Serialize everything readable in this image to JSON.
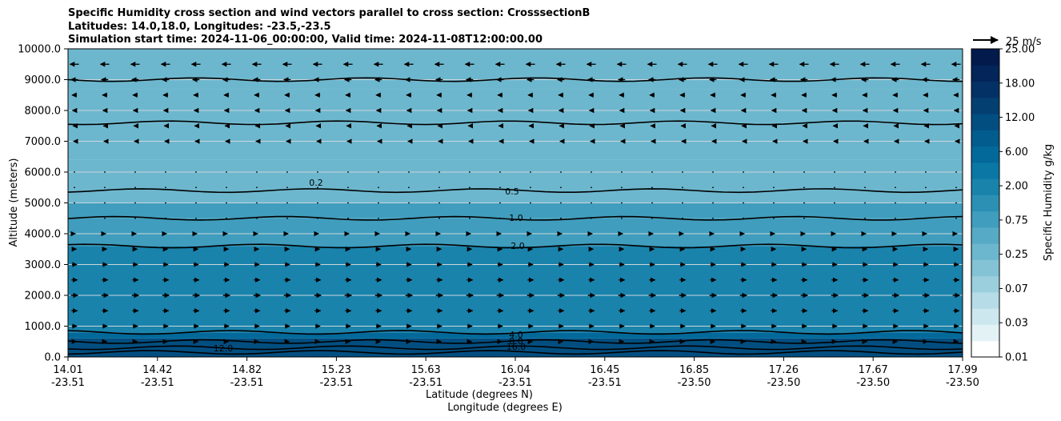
{
  "chart_data": {
    "type": "heatmap",
    "title": "Specific Humidity cross section and wind vectors parallel to cross section: CrosssectionB",
    "subtitle_lines": [
      "Latitudes: 14.0,18.0, Longitudes: -23.5,-23.5",
      "Simulation start time: 2024-11-06_00:00:00, Valid time: 2024-11-08T12:00:00.00"
    ],
    "xlabel": "Latitude (degrees N)",
    "xlabel2": "Longitude (degrees E)",
    "ylabel": "Altitude (meters)",
    "x_ticks": [
      {
        "lat": "14.01",
        "lon": "-23.51"
      },
      {
        "lat": "14.42",
        "lon": "-23.51"
      },
      {
        "lat": "14.82",
        "lon": "-23.51"
      },
      {
        "lat": "15.23",
        "lon": "-23.51"
      },
      {
        "lat": "15.63",
        "lon": "-23.51"
      },
      {
        "lat": "16.04",
        "lon": "-23.51"
      },
      {
        "lat": "16.45",
        "lon": "-23.51"
      },
      {
        "lat": "16.85",
        "lon": "-23.50"
      },
      {
        "lat": "17.26",
        "lon": "-23.50"
      },
      {
        "lat": "17.67",
        "lon": "-23.50"
      },
      {
        "lat": "17.99",
        "lon": "-23.50"
      }
    ],
    "y_ticks": [
      "0.0",
      "1000.0",
      "2000.0",
      "3000.0",
      "4000.0",
      "5000.0",
      "6000.0",
      "7000.0",
      "8000.0",
      "9000.0",
      "10000.0"
    ],
    "ylim": [
      0,
      10000
    ],
    "grid": "horizontal",
    "colorbar": {
      "label": "Specific Humidity g/kg",
      "ticks": [
        "0.01",
        "0.03",
        "0.07",
        "0.25",
        "0.75",
        "2.00",
        "6.00",
        "12.00",
        "18.00",
        "25.00"
      ],
      "colors": [
        "#ffffff",
        "#e3f2f5",
        "#cde7ee",
        "#b5dce7",
        "#9ccfde",
        "#84c3d6",
        "#6db7ce",
        "#56aac6",
        "#409dbd",
        "#2c90b5",
        "#1a83ac",
        "#0a77a4",
        "#02699a",
        "#025c8d",
        "#034e80",
        "#043f72",
        "#043165",
        "#032559",
        "#021a4c"
      ]
    },
    "humidity_bands": [
      {
        "from": 0,
        "to": 600,
        "value": 12.0
      },
      {
        "from": 600,
        "to": 800,
        "value": 6.0
      },
      {
        "from": 800,
        "to": 3600,
        "value": 2.0
      },
      {
        "from": 3600,
        "to": 4500,
        "value": 1.0
      },
      {
        "from": 4500,
        "to": 5000,
        "value": 0.75
      },
      {
        "from": 5000,
        "to": 6400,
        "value": 0.3
      },
      {
        "from": 6400,
        "to": 7600,
        "value": 0.35
      },
      {
        "from": 7600,
        "to": 8700,
        "value": 0.3
      },
      {
        "from": 8700,
        "to": 10000,
        "value": 0.5
      }
    ],
    "contour_labels": [
      "0.2",
      "0.5",
      "1.0",
      "2.0",
      "4.0",
      "8.0",
      "12.0",
      "16.0"
    ],
    "wind_reference": {
      "label": "25 m/s",
      "value": 25
    },
    "wind_rows": [
      {
        "altitude": 9500,
        "u": -9
      },
      {
        "altitude": 9000,
        "u": -7
      },
      {
        "altitude": 8500,
        "u": -5
      },
      {
        "altitude": 8000,
        "u": -4
      },
      {
        "altitude": 7500,
        "u": -3
      },
      {
        "altitude": 7000,
        "u": -2
      },
      {
        "altitude": 6000,
        "u": -1
      },
      {
        "altitude": 5500,
        "u": -1
      },
      {
        "altitude": 5000,
        "u": 1
      },
      {
        "altitude": 4500,
        "u": 1
      },
      {
        "altitude": 4000,
        "u": 2
      },
      {
        "altitude": 3500,
        "u": 4
      },
      {
        "altitude": 3000,
        "u": 5
      },
      {
        "altitude": 2500,
        "u": 6
      },
      {
        "altitude": 2000,
        "u": 7
      },
      {
        "altitude": 1500,
        "u": 6
      },
      {
        "altitude": 1000,
        "u": 5
      },
      {
        "altitude": 500,
        "u": 4
      }
    ]
  }
}
